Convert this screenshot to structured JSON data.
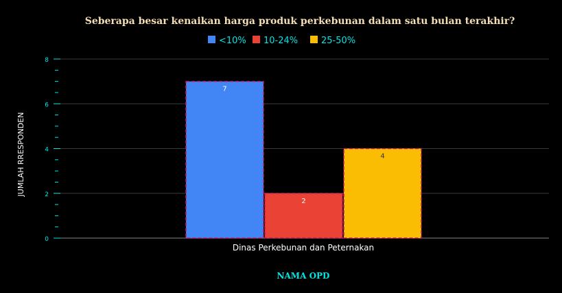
{
  "chart_data": {
    "type": "bar",
    "title": "Seberapa besar kenaikan harga produk perkebunan dalam satu bulan terakhir?",
    "categories": [
      "Dinas Perkebunan dan Peternakan"
    ],
    "series": [
      {
        "name": "<10%",
        "values": [
          7
        ],
        "color": "#4285f4"
      },
      {
        "name": "10-24%",
        "values": [
          2
        ],
        "color": "#ea4335"
      },
      {
        "name": "25-50%",
        "values": [
          4
        ],
        "color": "#fbbc04"
      }
    ],
    "data_labels": [
      "7",
      "2",
      "4"
    ],
    "xlabel": "NAMA OPD",
    "ylabel": "JUMLAH RRESPONDEN",
    "ylim": [
      0,
      8
    ],
    "yticks": [
      "0",
      "2",
      "4",
      "6",
      "8"
    ],
    "grid": true,
    "legend_position": "top",
    "colors": {
      "background": "#000000",
      "title_text": "#f5deb3",
      "axis_accent": "#00e5e5",
      "gridline": "#3a3a3a",
      "bar_border": "#c2185b"
    }
  }
}
